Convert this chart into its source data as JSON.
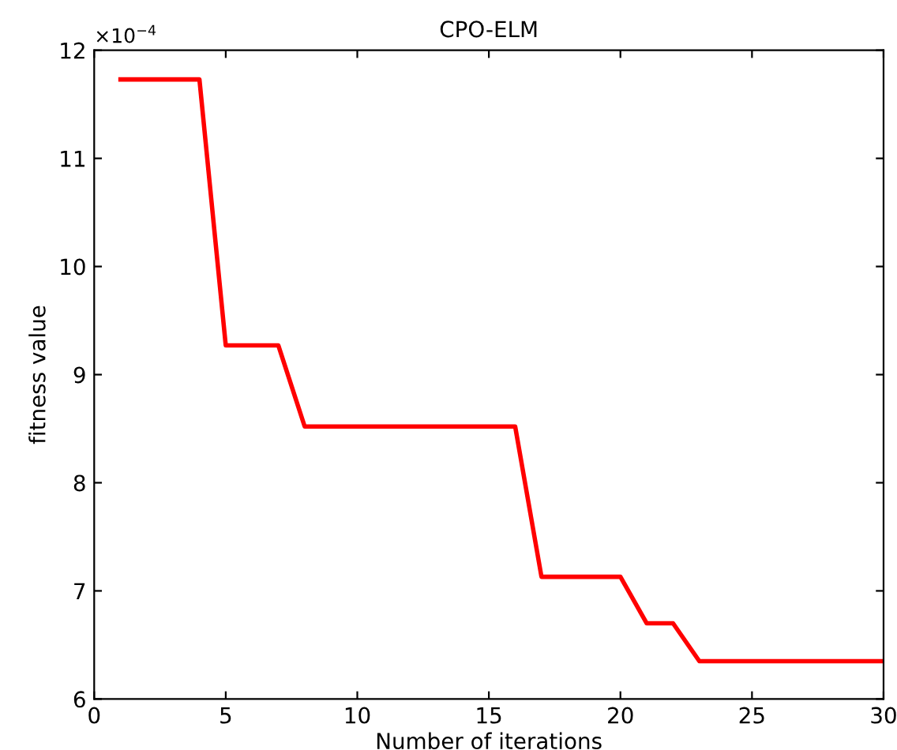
{
  "chart_data": {
    "type": "line",
    "title": "CPO-ELM",
    "xlabel": "Number of iterations",
    "ylabel": "fitness value",
    "annotations": [
      "×10$^{−4}$"
    ],
    "x": [
      1,
      4,
      5,
      7,
      8,
      16,
      17,
      20,
      21,
      22,
      23,
      30
    ],
    "series": [
      {
        "color": "#ff0000",
        "values": [
          11.73,
          11.73,
          9.27,
          9.27,
          8.52,
          8.52,
          7.13,
          7.13,
          6.7,
          6.7,
          6.35,
          6.35
        ]
      }
    ],
    "xlim": [
      0,
      30
    ],
    "xticks": [
      0,
      5,
      10,
      15,
      20,
      25,
      30
    ],
    "ylim": [
      6,
      12
    ],
    "yticks": [
      6,
      7,
      8,
      9,
      10,
      11,
      12
    ],
    "grid": false,
    "legend": false,
    "marker": "none",
    "line_style": "solid"
  }
}
